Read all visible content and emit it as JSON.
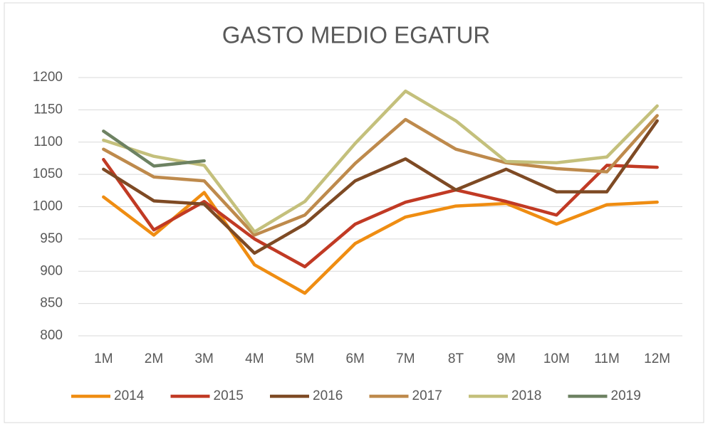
{
  "chart_data": {
    "type": "line",
    "title": "GASTO MEDIO EGATUR",
    "categories": [
      "1M",
      "2M",
      "3M",
      "4M",
      "5M",
      "6M",
      "7M",
      "8T",
      "9M",
      "10M",
      "11M",
      "12M"
    ],
    "series": [
      {
        "name": "2014",
        "color": "#ef8d12",
        "values": [
          1015,
          956,
          1022,
          910,
          866,
          943,
          984,
          1001,
          1005,
          973,
          1003,
          1007
        ]
      },
      {
        "name": "2015",
        "color": "#c13a24",
        "values": [
          1073,
          964,
          1008,
          950,
          907,
          973,
          1007,
          1026,
          1008,
          987,
          1064,
          1061
        ]
      },
      {
        "name": "2016",
        "color": "#7e4a24",
        "values": [
          1058,
          1009,
          1004,
          928,
          973,
          1040,
          1074,
          1026,
          1058,
          1023,
          1023,
          1133
        ]
      },
      {
        "name": "2017",
        "color": "#be8a4c",
        "values": [
          1089,
          1046,
          1040,
          956,
          987,
          1067,
          1135,
          1089,
          1068,
          1059,
          1054,
          1141
        ]
      },
      {
        "name": "2018",
        "color": "#c4c07c",
        "values": [
          1103,
          1078,
          1064,
          961,
          1008,
          1098,
          1179,
          1133,
          1070,
          1068,
          1077,
          1156
        ]
      },
      {
        "name": "2019",
        "color": "#6d8262",
        "values": [
          1117,
          1063,
          1071,
          null,
          null,
          null,
          null,
          null,
          null,
          null,
          null,
          null
        ]
      }
    ],
    "ylim": [
      800,
      1200
    ],
    "yticks": [
      800,
      850,
      900,
      950,
      1000,
      1050,
      1100,
      1150,
      1200
    ],
    "grid": true,
    "legend": "bottom"
  }
}
